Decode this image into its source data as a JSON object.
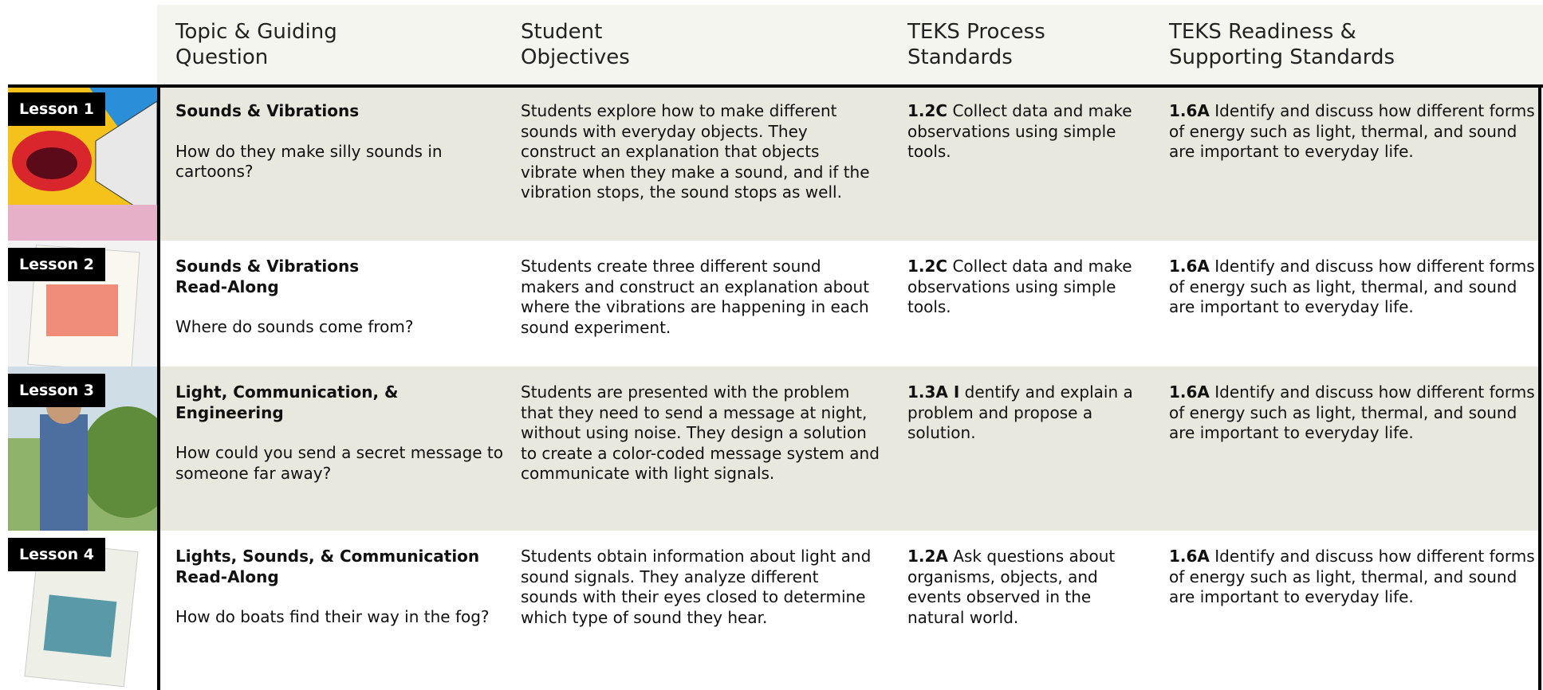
{
  "headers": [
    "Topic & Guiding\nQuestion",
    "Student\nObjectives",
    "TEKS Process\nStandards",
    "TEKS Readiness &\nSupporting Standards"
  ],
  "rows": [
    {
      "lesson": "Lesson 1",
      "title": "Sounds & Vibrations",
      "question": "How do they make silly sounds in cartoons?",
      "objectives": "Students explore how to make different sounds with everyday objects. They construct an explanation that objects vibrate when they make a sound, and if the vibration stops, the sound stops as well.",
      "process_code": "1.2C",
      "process_text": "Collect data and make observations using simple tools.",
      "readiness_code": "1.6A",
      "readiness_text": "Identify and discuss how different forms of energy such as light, thermal, and sound are important to everyday life."
    },
    {
      "lesson": "Lesson 2",
      "title": "Sounds & Vibrations\nRead-Along",
      "question": "Where do sounds come from?",
      "objectives": "Students create three different sound makers and construct an explanation about where the vibrations are happening in each sound experiment.",
      "process_code": "1.2C",
      "process_text": "Collect data and make observations using simple tools.",
      "readiness_code": "1.6A",
      "readiness_text": "Identify and discuss how different forms of energy such as light, thermal, and sound are important to everyday life."
    },
    {
      "lesson": "Lesson 3",
      "title": "Light, Communication, &\nEngineering",
      "question": "How could you send a secret message to someone far away?",
      "objectives": "Students are presented with the problem that they need to send a message at night, without using noise. They design a solution to create a color-coded message system and communicate with light signals.",
      "process_code": "1.3A I",
      "process_text": "dentify and explain a problem and propose a solution.",
      "readiness_code": "1.6A",
      "readiness_text": "Identify and discuss how different forms of energy such as light, thermal, and sound are important to everyday life."
    },
    {
      "lesson": "Lesson 4",
      "title": "Lights, Sounds, & Communication\nRead-Along",
      "question": "How do boats find their way in the fog?",
      "objectives": "Students obtain information about light and sound signals. They analyze different sounds with their eyes closed to determine which type of sound they hear.",
      "process_code": "1.2A",
      "process_text": "Ask questions about organisms, objects, and events observed in the natural world.",
      "readiness_code": "1.6A",
      "readiness_text": "Identify and discuss how different forms of energy such as light, thermal, and sound are important to everyday life."
    }
  ]
}
